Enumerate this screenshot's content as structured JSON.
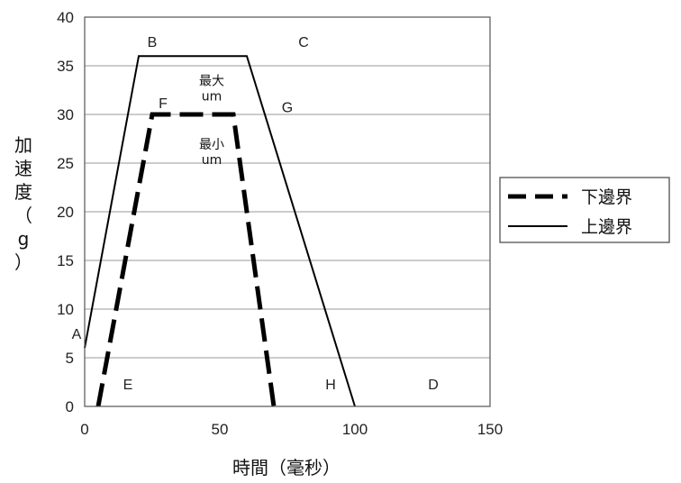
{
  "chart_data": {
    "type": "line",
    "xlabel": "時間（毫秒）",
    "ylabel": "加速度（g）",
    "xlim": [
      0,
      150
    ],
    "ylim": [
      0,
      40
    ],
    "xticks": [
      0,
      50,
      100,
      150
    ],
    "yticks": [
      0,
      5,
      10,
      15,
      20,
      25,
      30,
      35,
      40
    ],
    "grid": "horizontal",
    "legend_position": "right",
    "series": [
      {
        "name": "下邊界",
        "style": "dashed",
        "color": "#000000",
        "x": [
          5,
          25,
          55,
          70
        ],
        "y": [
          0,
          30,
          30,
          0
        ]
      },
      {
        "name": "上邊界",
        "style": "solid",
        "color": "#000000",
        "x": [
          0,
          20,
          60,
          100
        ],
        "y": [
          6,
          36,
          36,
          0
        ]
      }
    ],
    "point_labels": [
      {
        "text": "A",
        "x": -3,
        "y": 7.5
      },
      {
        "text": "B",
        "x": 25,
        "y": 37.5
      },
      {
        "text": "C",
        "x": 81,
        "y": 37.5
      },
      {
        "text": "F",
        "x": 29,
        "y": 31.2
      },
      {
        "text": "G",
        "x": 75,
        "y": 30.8
      },
      {
        "text": "E",
        "x": 16,
        "y": 2.3
      },
      {
        "text": "H",
        "x": 91,
        "y": 2.3
      },
      {
        "text": "D",
        "x": 129,
        "y": 2.3
      }
    ],
    "annotations": [
      {
        "lines": [
          "最大",
          "um"
        ],
        "x": 47,
        "y": 33
      },
      {
        "lines": [
          "最小",
          "um"
        ],
        "x": 47,
        "y": 26.5
      }
    ]
  }
}
